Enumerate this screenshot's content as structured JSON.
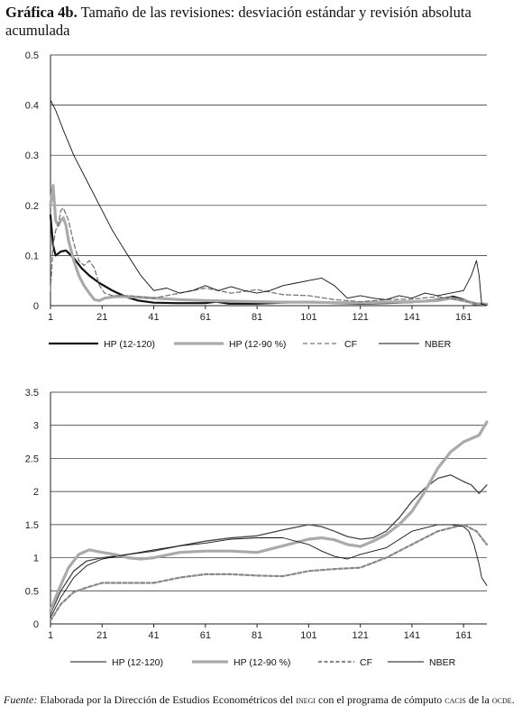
{
  "header": {
    "label": "Gráfica 4b.",
    "title": "Tamaño de las revisiones: desviación estándar y revisión absoluta acumulada"
  },
  "source": {
    "label": "Fuente:",
    "text_a": "Elaborada por la Dirección de Estudios Econométricos del",
    "org1": "inegi",
    "text_b": "con el programa de cómputo",
    "org2": "cacis",
    "text_c": "de la",
    "org3": "ocde",
    "text_d": "."
  },
  "chart_data": [
    {
      "type": "line",
      "xlim": [
        1,
        170
      ],
      "ylim": [
        0,
        0.5
      ],
      "xticks": [
        1,
        21,
        41,
        61,
        81,
        101,
        121,
        141,
        161
      ],
      "yticks": [
        0,
        0.1,
        0.2,
        0.3,
        0.4,
        0.5
      ],
      "ytick_labels": [
        "0",
        "0.1",
        "0.2",
        "0.3",
        "0.4",
        "0.5"
      ],
      "grid": true,
      "legend_position": "bottom",
      "series": [
        {
          "name": "HP (12-120)",
          "color": "#111111",
          "x": [
            1,
            2,
            3,
            5,
            7,
            10,
            13,
            16,
            20,
            25,
            30,
            35,
            41,
            50,
            61,
            65,
            70,
            81,
            91,
            101,
            111,
            121,
            131,
            141,
            151,
            157,
            161,
            165,
            170
          ],
          "y": [
            0.18,
            0.12,
            0.1,
            0.108,
            0.11,
            0.095,
            0.075,
            0.06,
            0.045,
            0.03,
            0.018,
            0.01,
            0.006,
            0.005,
            0.005,
            0.008,
            0.004,
            0.004,
            0.006,
            0.008,
            0.005,
            0.004,
            0.005,
            0.007,
            0.012,
            0.018,
            0.012,
            0.003,
            0.002
          ]
        },
        {
          "name": "HP (12-90 %)",
          "color": "#aaaaaa",
          "x": [
            1,
            2,
            3,
            4,
            5,
            6,
            7,
            8,
            10,
            12,
            14,
            16,
            18,
            20,
            22,
            26,
            31,
            41,
            51,
            61,
            71,
            81,
            91,
            101,
            111,
            121,
            131,
            141,
            151,
            156,
            161,
            166,
            170
          ],
          "y": [
            0.2,
            0.24,
            0.17,
            0.16,
            0.17,
            0.175,
            0.16,
            0.13,
            0.09,
            0.06,
            0.04,
            0.025,
            0.012,
            0.01,
            0.015,
            0.018,
            0.018,
            0.015,
            0.012,
            0.01,
            0.009,
            0.008,
            0.007,
            0.007,
            0.006,
            0.006,
            0.007,
            0.008,
            0.01,
            0.015,
            0.01,
            0.004,
            0.003
          ]
        },
        {
          "name": "CF",
          "color": "#777777",
          "x": [
            1,
            2,
            3,
            4,
            5,
            6,
            8,
            10,
            12,
            14,
            16,
            18,
            20,
            22,
            25,
            31,
            41,
            51,
            61,
            71,
            81,
            91,
            101,
            111,
            121,
            131,
            141,
            151,
            161,
            166,
            170
          ],
          "y": [
            0.03,
            0.12,
            0.15,
            0.16,
            0.19,
            0.195,
            0.17,
            0.125,
            0.09,
            0.08,
            0.09,
            0.075,
            0.04,
            0.025,
            0.02,
            0.02,
            0.015,
            0.025,
            0.035,
            0.025,
            0.032,
            0.022,
            0.02,
            0.012,
            0.008,
            0.012,
            0.013,
            0.018,
            0.01,
            0.004,
            0.003
          ]
        },
        {
          "name": "NBER",
          "color": "#111111",
          "x": [
            1,
            3,
            6,
            10,
            15,
            20,
            25,
            31,
            36,
            41,
            46,
            51,
            56,
            61,
            66,
            71,
            76,
            81,
            86,
            91,
            96,
            101,
            106,
            111,
            116,
            121,
            126,
            131,
            136,
            141,
            146,
            151,
            156,
            161,
            164,
            166,
            167,
            168,
            170
          ],
          "y": [
            0.41,
            0.39,
            0.35,
            0.3,
            0.25,
            0.2,
            0.15,
            0.1,
            0.06,
            0.03,
            0.035,
            0.025,
            0.03,
            0.04,
            0.03,
            0.038,
            0.03,
            0.025,
            0.03,
            0.04,
            0.045,
            0.05,
            0.055,
            0.04,
            0.015,
            0.02,
            0.015,
            0.012,
            0.02,
            0.015,
            0.025,
            0.02,
            0.025,
            0.03,
            0.06,
            0.09,
            0.06,
            0.003,
            0.001
          ]
        }
      ]
    },
    {
      "type": "line",
      "xlim": [
        1,
        170
      ],
      "ylim": [
        0,
        3.5
      ],
      "xticks": [
        1,
        21,
        41,
        61,
        81,
        101,
        121,
        141,
        161
      ],
      "yticks": [
        0,
        0.5,
        1,
        1.5,
        2,
        2.5,
        3,
        3.5
      ],
      "ytick_labels": [
        "0",
        "0.5",
        "1",
        "1.5",
        "2",
        "2.5",
        "3",
        "3.5"
      ],
      "grid": true,
      "legend_position": "bottom",
      "series": [
        {
          "name": "HP (12-120)",
          "color": "#444444",
          "x": [
            1,
            5,
            10,
            15,
            21,
            31,
            41,
            51,
            61,
            71,
            81,
            91,
            101,
            106,
            111,
            116,
            121,
            126,
            131,
            136,
            141,
            146,
            151,
            156,
            161,
            164,
            167,
            170
          ],
          "y": [
            0.15,
            0.5,
            0.8,
            0.95,
            1.0,
            1.05,
            1.1,
            1.18,
            1.25,
            1.3,
            1.33,
            1.42,
            1.5,
            1.47,
            1.4,
            1.32,
            1.28,
            1.3,
            1.4,
            1.6,
            1.85,
            2.05,
            2.2,
            2.25,
            2.15,
            2.1,
            1.97,
            2.1
          ]
        },
        {
          "name": "HP (12-90 %)",
          "color": "#aaaaaa",
          "x": [
            1,
            4,
            8,
            12,
            16,
            21,
            26,
            31,
            36,
            41,
            51,
            61,
            71,
            81,
            91,
            101,
            106,
            111,
            116,
            121,
            126,
            131,
            136,
            141,
            146,
            151,
            156,
            161,
            164,
            167,
            170
          ],
          "y": [
            0.2,
            0.5,
            0.85,
            1.05,
            1.12,
            1.08,
            1.05,
            1.0,
            0.98,
            1.0,
            1.08,
            1.1,
            1.1,
            1.08,
            1.18,
            1.28,
            1.3,
            1.27,
            1.2,
            1.17,
            1.25,
            1.35,
            1.5,
            1.7,
            2.0,
            2.35,
            2.6,
            2.75,
            2.8,
            2.85,
            3.05
          ]
        },
        {
          "name": "CF",
          "color": "#888888",
          "x": [
            1,
            5,
            10,
            15,
            21,
            31,
            41,
            51,
            61,
            71,
            81,
            91,
            101,
            111,
            121,
            131,
            141,
            151,
            161,
            166,
            170
          ],
          "y": [
            0.05,
            0.3,
            0.48,
            0.55,
            0.62,
            0.62,
            0.62,
            0.7,
            0.75,
            0.75,
            0.73,
            0.72,
            0.8,
            0.83,
            0.85,
            1.0,
            1.2,
            1.4,
            1.5,
            1.4,
            1.2
          ]
        },
        {
          "name": "NBER",
          "color": "#111111",
          "x": [
            1,
            5,
            10,
            15,
            21,
            31,
            41,
            51,
            61,
            71,
            81,
            91,
            101,
            106,
            111,
            116,
            121,
            131,
            141,
            151,
            156,
            161,
            163,
            165,
            167,
            168,
            170
          ],
          "y": [
            0.1,
            0.4,
            0.7,
            0.88,
            0.98,
            1.05,
            1.12,
            1.18,
            1.22,
            1.28,
            1.3,
            1.3,
            1.2,
            1.1,
            1.02,
            0.98,
            1.05,
            1.15,
            1.4,
            1.5,
            1.5,
            1.47,
            1.4,
            1.2,
            0.9,
            0.7,
            0.58
          ]
        }
      ]
    }
  ]
}
